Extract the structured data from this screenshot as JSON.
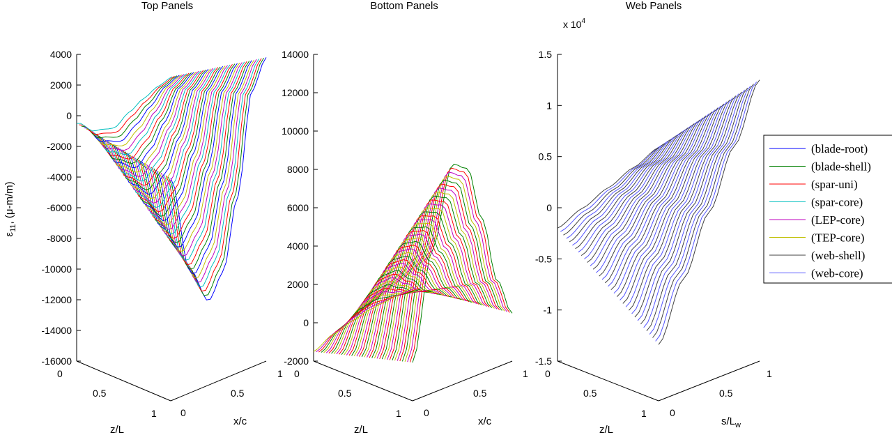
{
  "chart_data": [
    {
      "type": "line",
      "title": "Top Panels",
      "xlabel": "z/L",
      "ylabel": "x/c",
      "zlabel": "ε11, (μ-m/m)",
      "xlim": [
        0,
        1
      ],
      "ylim": [
        0,
        1
      ],
      "zlim": [
        -16000,
        4000
      ],
      "x_ticks": [
        "0",
        "0.5",
        "1"
      ],
      "y_ticks": [
        "0",
        "0.5",
        "1"
      ],
      "z_ticks": [
        "4000",
        "2000",
        "0",
        "-2000",
        "-4000",
        "-6000",
        "-8000",
        "-10000",
        "-12000",
        "-14000",
        "-16000"
      ],
      "curve_count": 40,
      "series": [
        "(blade-root)",
        "(blade-shell)",
        "(spar-uni)",
        "(spar-core)",
        "(LEP-core)",
        "(TEP-core)"
      ],
      "profile": {
        "x": [
          0,
          0.2,
          0.4,
          0.55,
          0.7,
          0.85,
          1
        ],
        "root_z": [
          -1500,
          -8000,
          -10500,
          -9000,
          -4500,
          2000,
          3800
        ],
        "tip_z": [
          -500,
          -1500,
          -1800,
          -1200,
          -700,
          -300,
          -50
        ]
      }
    },
    {
      "type": "line",
      "title": "Bottom Panels",
      "xlabel": "z/L",
      "ylabel": "x/c",
      "zlim": [
        -2000,
        14000
      ],
      "x_ticks": [
        "0",
        "0.5",
        "1"
      ],
      "y_ticks": [
        "0",
        "0.5",
        "1"
      ],
      "z_ticks": [
        "14000",
        "12000",
        "10000",
        "8000",
        "6000",
        "4000",
        "2000",
        "0",
        "-2000"
      ],
      "curve_count": 40,
      "series": [
        "(blade-shell)",
        "(spar-uni)",
        "(LEP-core)",
        "(TEP-core)"
      ],
      "profile": {
        "x": [
          0,
          0.2,
          0.4,
          0.55,
          0.7,
          0.85,
          1
        ],
        "root_z": [
          0,
          5500,
          9500,
          9000,
          6000,
          2500,
          500
        ],
        "tip_z": [
          -1500,
          -1000,
          -700,
          -500,
          -400,
          -300,
          -200
        ]
      }
    },
    {
      "type": "line",
      "title": "Web Panels",
      "xlabel": "z/L",
      "ylabel": "s/Lw",
      "zlim": [
        -15000,
        15000
      ],
      "z_exponent_label": "x 10",
      "z_exponent": "4",
      "x_ticks": [
        "0",
        "0.5",
        "1"
      ],
      "y_ticks": [
        "0",
        "0.5",
        "1"
      ],
      "z_ticks": [
        "1.5",
        "1",
        "0.5",
        "0",
        "-0.5",
        "-1",
        "-1.5"
      ],
      "curve_count": 35,
      "series": [
        "(web-shell)",
        "(web-core)"
      ],
      "profile": {
        "x": [
          0,
          0.25,
          0.5,
          0.75,
          1
        ],
        "root_z": [
          -9500,
          -4000,
          1500,
          7000,
          12500
        ],
        "tip_z": [
          -2000,
          -1000,
          0,
          1000,
          2000
        ]
      }
    }
  ],
  "legend": {
    "placement": "right",
    "entries": [
      {
        "label": "(blade-root)",
        "color": "#0000ff"
      },
      {
        "label": "(blade-shell)",
        "color": "#008000"
      },
      {
        "label": "(spar-uni)",
        "color": "#ff0000"
      },
      {
        "label": "(spar-core)",
        "color": "#00bfbf"
      },
      {
        "label": "(LEP-core)",
        "color": "#bf00bf"
      },
      {
        "label": "(TEP-core)",
        "color": "#bfbf00"
      },
      {
        "label": "(web-shell)",
        "color": "#404040"
      },
      {
        "label": "(web-core)",
        "color": "#5555ff"
      }
    ]
  }
}
